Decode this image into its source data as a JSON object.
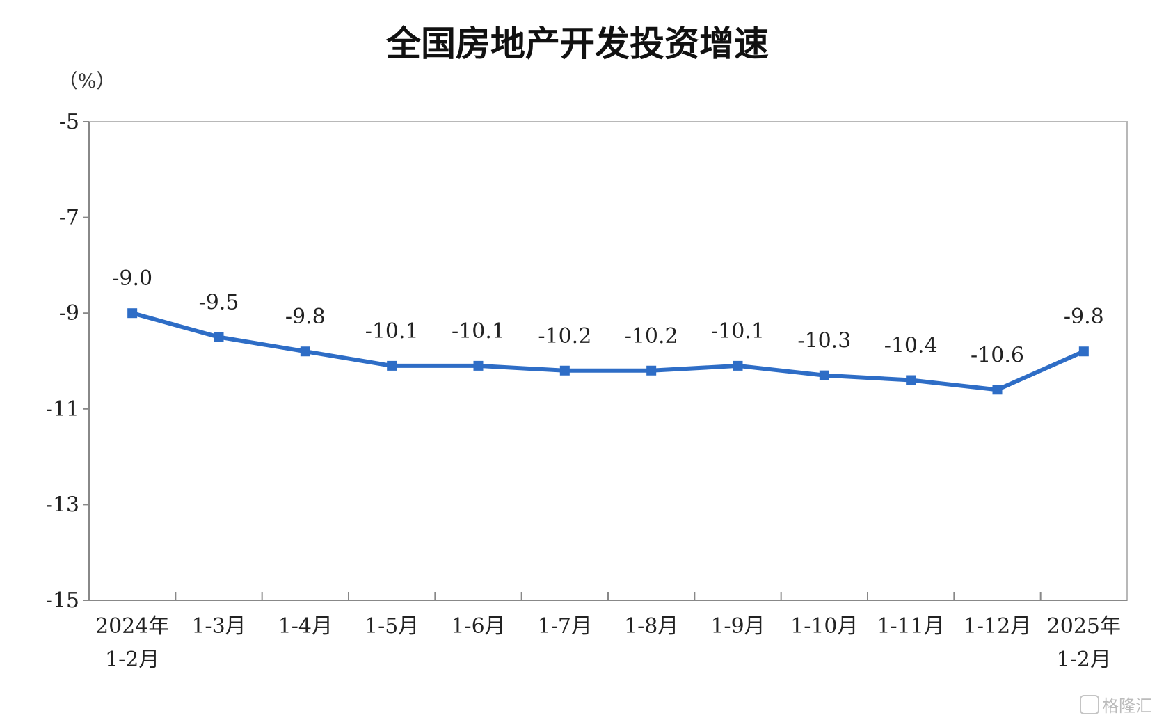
{
  "chart_data": {
    "type": "line",
    "title": "全国房地产开发投资增速",
    "ylabel": "（%）",
    "xlabel": "",
    "ylim": [
      -15,
      -5
    ],
    "yticks": [
      -5,
      -7,
      -9,
      -11,
      -13,
      -15
    ],
    "categories": [
      [
        "2024年",
        "1-2月"
      ],
      [
        "1-3月"
      ],
      [
        "1-4月"
      ],
      [
        "1-5月"
      ],
      [
        "1-6月"
      ],
      [
        "1-7月"
      ],
      [
        "1-8月"
      ],
      [
        "1-9月"
      ],
      [
        "1-10月"
      ],
      [
        "1-11月"
      ],
      [
        "1-12月"
      ],
      [
        "2025年",
        "1-2月"
      ]
    ],
    "series": [
      {
        "name": "",
        "color": "#2e6dc6",
        "values": [
          -9.0,
          -9.5,
          -9.8,
          -10.1,
          -10.1,
          -10.2,
          -10.2,
          -10.1,
          -10.3,
          -10.4,
          -10.6,
          -9.8
        ],
        "labels": [
          "-9.0",
          "-9.5",
          "-9.8",
          "-10.1",
          "-10.1",
          "-10.2",
          "-10.2",
          "-10.1",
          "-10.3",
          "-10.4",
          "-10.6",
          "-9.8"
        ]
      }
    ],
    "grid": false,
    "legend": "none"
  },
  "watermark": "格隆汇"
}
